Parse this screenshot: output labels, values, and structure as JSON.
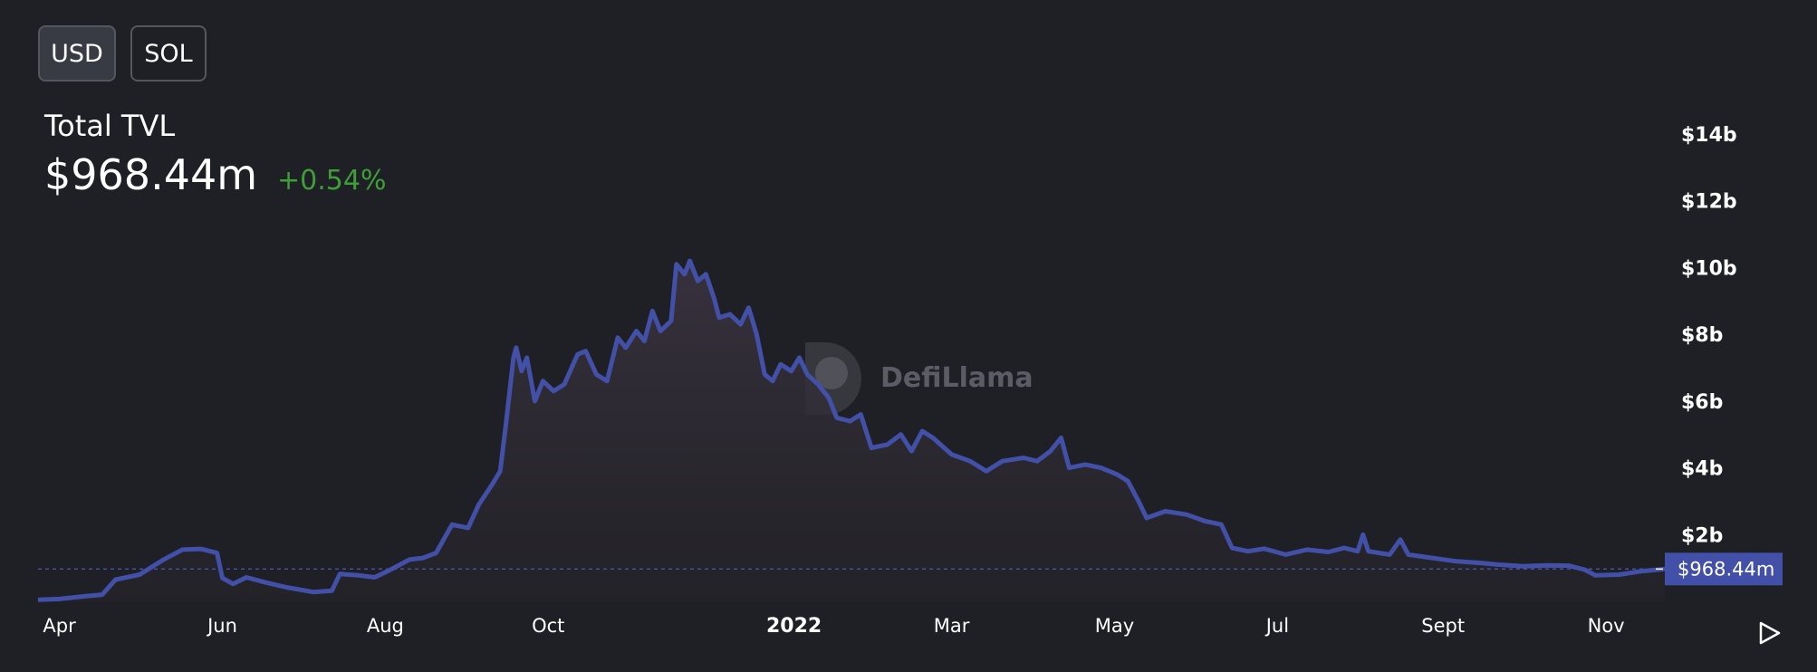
{
  "toggles": {
    "usd": "USD",
    "sol": "SOL"
  },
  "summary": {
    "label": "Total TVL",
    "value": "$968.44m",
    "change": "+0.54%"
  },
  "watermark": "DefiLlama",
  "colors": {
    "background": "#1f2026",
    "line": "#4350a8",
    "current_label_bg": "#4350a8",
    "positive": "#3f9e37"
  },
  "icons": {
    "play": "play-icon"
  },
  "chart_data": {
    "type": "area",
    "title": "",
    "xlabel": "",
    "ylabel": "",
    "ylim": [
      0,
      14000000000
    ],
    "y_ticks": [
      {
        "label": "$2b",
        "value": 2000000000
      },
      {
        "label": "$4b",
        "value": 4000000000
      },
      {
        "label": "$6b",
        "value": 6000000000
      },
      {
        "label": "$8b",
        "value": 8000000000
      },
      {
        "label": "$10b",
        "value": 10000000000
      },
      {
        "label": "$12b",
        "value": 12000000000
      },
      {
        "label": "$14b",
        "value": 14000000000
      }
    ],
    "x_ticks": [
      {
        "label": "Apr",
        "date": "2021-04-01"
      },
      {
        "label": "Jun",
        "date": "2021-06-01"
      },
      {
        "label": "Aug",
        "date": "2021-08-01"
      },
      {
        "label": "Oct",
        "date": "2021-10-01"
      },
      {
        "label": "2022",
        "date": "2022-01-01"
      },
      {
        "label": "Mar",
        "date": "2022-03-01"
      },
      {
        "label": "May",
        "date": "2022-05-01"
      },
      {
        "label": "Jul",
        "date": "2022-07-01"
      },
      {
        "label": "Sept",
        "date": "2022-09-01"
      },
      {
        "label": "Nov",
        "date": "2022-11-01"
      }
    ],
    "x_range": [
      "2021-03-24",
      "2022-11-23"
    ],
    "current": {
      "label": "$968.44m",
      "value": 968440000
    },
    "series": [
      {
        "values": [
          [
            "2021-03-24",
            50000000.0
          ],
          [
            "2021-04-01",
            70000000.0
          ],
          [
            "2021-04-10",
            150000000.0
          ],
          [
            "2021-04-17",
            200000000.0
          ],
          [
            "2021-04-22",
            650000000.0
          ],
          [
            "2021-05-01",
            800000000.0
          ],
          [
            "2021-05-10",
            1250000000.0
          ],
          [
            "2021-05-17",
            1550000000.0
          ],
          [
            "2021-05-24",
            1570000000.0
          ],
          [
            "2021-05-30",
            1450000000.0
          ],
          [
            "2021-06-01",
            700000000.0
          ],
          [
            "2021-06-05",
            520000000.0
          ],
          [
            "2021-06-10",
            720000000.0
          ],
          [
            "2021-06-18",
            550000000.0
          ],
          [
            "2021-06-25",
            420000000.0
          ],
          [
            "2021-07-05",
            280000000.0
          ],
          [
            "2021-07-12",
            320000000.0
          ],
          [
            "2021-07-15",
            820000000.0
          ],
          [
            "2021-07-22",
            780000000.0
          ],
          [
            "2021-07-28",
            720000000.0
          ],
          [
            "2021-08-03",
            950000000.0
          ],
          [
            "2021-08-10",
            1250000000.0
          ],
          [
            "2021-08-15",
            1300000000.0
          ],
          [
            "2021-08-20",
            1450000000.0
          ],
          [
            "2021-08-26",
            2300000000.0
          ],
          [
            "2021-09-01",
            2200000000.0
          ],
          [
            "2021-09-05",
            2900000000.0
          ],
          [
            "2021-09-10",
            3500000000.0
          ],
          [
            "2021-09-13",
            3900000000.0
          ],
          [
            "2021-09-15",
            5200000000.0
          ],
          [
            "2021-09-18",
            7300000000.0
          ],
          [
            "2021-09-19",
            7600000000.0
          ],
          [
            "2021-09-21",
            6900000000.0
          ],
          [
            "2021-09-23",
            7300000000.0
          ],
          [
            "2021-09-26",
            6000000000.0
          ],
          [
            "2021-09-29",
            6600000000.0
          ],
          [
            "2021-10-03",
            6300000000.0
          ],
          [
            "2021-10-07",
            6500000000.0
          ],
          [
            "2021-10-12",
            7400000000.0
          ],
          [
            "2021-10-15",
            7500000000.0
          ],
          [
            "2021-10-19",
            6800000000.0
          ],
          [
            "2021-10-23",
            6600000000.0
          ],
          [
            "2021-10-27",
            7900000000.0
          ],
          [
            "2021-10-30",
            7600000000.0
          ],
          [
            "2021-11-03",
            8100000000.0
          ],
          [
            "2021-11-06",
            7800000000.0
          ],
          [
            "2021-11-09",
            8700000000.0
          ],
          [
            "2021-11-12",
            8100000000.0
          ],
          [
            "2021-11-16",
            8400000000.0
          ],
          [
            "2021-11-18",
            10100000000.0
          ],
          [
            "2021-11-21",
            9800000000.0
          ],
          [
            "2021-11-23",
            10200000000.0
          ],
          [
            "2021-11-26",
            9600000000.0
          ],
          [
            "2021-11-29",
            9800000000.0
          ],
          [
            "2021-12-02",
            9100000000.0
          ],
          [
            "2021-12-04",
            8500000000.0
          ],
          [
            "2021-12-08",
            8600000000.0
          ],
          [
            "2021-12-12",
            8300000000.0
          ],
          [
            "2021-12-15",
            8800000000.0
          ],
          [
            "2021-12-18",
            8000000000.0
          ],
          [
            "2021-12-21",
            6800000000.0
          ],
          [
            "2021-12-24",
            6600000000.0
          ],
          [
            "2021-12-27",
            7100000000.0
          ],
          [
            "2021-12-31",
            6900000000.0
          ],
          [
            "2022-01-03",
            7300000000.0
          ],
          [
            "2022-01-06",
            6800000000.0
          ],
          [
            "2022-01-10",
            6500000000.0
          ],
          [
            "2022-01-14",
            6100000000.0
          ],
          [
            "2022-01-17",
            5500000000.0
          ],
          [
            "2022-01-22",
            5400000000.0
          ],
          [
            "2022-01-26",
            5600000000.0
          ],
          [
            "2022-01-30",
            4600000000.0
          ],
          [
            "2022-02-05",
            4700000000.0
          ],
          [
            "2022-02-10",
            5000000000.0
          ],
          [
            "2022-02-14",
            4500000000.0
          ],
          [
            "2022-02-18",
            5100000000.0
          ],
          [
            "2022-02-22",
            4900000000.0
          ],
          [
            "2022-03-01",
            4400000000.0
          ],
          [
            "2022-03-08",
            4200000000.0
          ],
          [
            "2022-03-14",
            3900000000.0
          ],
          [
            "2022-03-20",
            4200000000.0
          ],
          [
            "2022-03-28",
            4300000000.0
          ],
          [
            "2022-04-02",
            4200000000.0
          ],
          [
            "2022-04-07",
            4500000000.0
          ],
          [
            "2022-04-11",
            4900000000.0
          ],
          [
            "2022-04-14",
            4000000000.0
          ],
          [
            "2022-04-20",
            4100000000.0
          ],
          [
            "2022-04-26",
            4000000000.0
          ],
          [
            "2022-05-02",
            3800000000.0
          ],
          [
            "2022-05-06",
            3600000000.0
          ],
          [
            "2022-05-10",
            3000000000.0
          ],
          [
            "2022-05-13",
            2500000000.0
          ],
          [
            "2022-05-20",
            2700000000.0
          ],
          [
            "2022-05-28",
            2600000000.0
          ],
          [
            "2022-06-04",
            2400000000.0
          ],
          [
            "2022-06-10",
            2300000000.0
          ],
          [
            "2022-06-14",
            1600000000.0
          ],
          [
            "2022-06-20",
            1500000000.0
          ],
          [
            "2022-06-26",
            1580000000.0
          ],
          [
            "2022-07-04",
            1400000000.0
          ],
          [
            "2022-07-12",
            1550000000.0
          ],
          [
            "2022-07-20",
            1480000000.0
          ],
          [
            "2022-07-26",
            1600000000.0
          ],
          [
            "2022-07-31",
            1500000000.0
          ],
          [
            "2022-08-02",
            2000000000.0
          ],
          [
            "2022-08-04",
            1500000000.0
          ],
          [
            "2022-08-12",
            1400000000.0
          ],
          [
            "2022-08-16",
            1850000000.0
          ],
          [
            "2022-08-19",
            1400000000.0
          ],
          [
            "2022-08-28",
            1300000000.0
          ],
          [
            "2022-09-06",
            1200000000.0
          ],
          [
            "2022-09-15",
            1150000000.0
          ],
          [
            "2022-09-22",
            1100000000.0
          ],
          [
            "2022-10-01",
            1050000000.0
          ],
          [
            "2022-10-10",
            1080000000.0
          ],
          [
            "2022-10-18",
            1070000000.0
          ],
          [
            "2022-10-24",
            950000000.0
          ],
          [
            "2022-10-28",
            780000000.0
          ],
          [
            "2022-11-06",
            800000000.0
          ],
          [
            "2022-11-14",
            900000000.0
          ],
          [
            "2022-11-23",
            968000000.0
          ]
        ]
      }
    ]
  }
}
